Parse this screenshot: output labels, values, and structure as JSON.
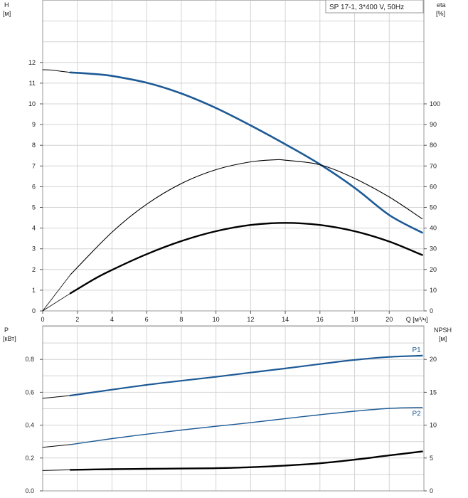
{
  "legend": "SP 17-1, 3*400 V, 50Hz",
  "colors": {
    "blue": "#1d5a96",
    "black": "#000000",
    "grid": "#d4d4d4",
    "frame": "#9a9a9a"
  },
  "chart_data": [
    {
      "type": "line",
      "name": "performance",
      "left_axis": {
        "label_line1": "H",
        "label_line2": "[м]",
        "range": [
          0,
          12
        ],
        "ticks": [
          0,
          1,
          2,
          3,
          4,
          5,
          6,
          7,
          8,
          9,
          10,
          11,
          12
        ]
      },
      "right_axis": {
        "label_line1": "eta",
        "label_line2": "[%]",
        "range": [
          0,
          120
        ],
        "ticks": [
          0,
          10,
          20,
          30,
          40,
          50,
          60,
          70,
          80,
          90,
          100
        ]
      },
      "x_axis": {
        "label": "Q [м³/ч]",
        "range": [
          0,
          22
        ],
        "tick_labels": [
          0,
          2,
          4,
          6,
          8,
          10,
          12,
          14,
          16,
          18,
          20
        ]
      },
      "grid": true,
      "series": [
        {
          "axis": "left",
          "color": "blue",
          "width": 2.6,
          "x": [
            1.6,
            3,
            4,
            6,
            8,
            10,
            12,
            14,
            16,
            18,
            20,
            21.9
          ],
          "y": [
            11.52,
            11.44,
            11.35,
            11.02,
            10.5,
            9.8,
            8.96,
            8.05,
            7.08,
            5.95,
            4.63,
            3.78
          ]
        },
        {
          "axis": "left",
          "color": "black",
          "width": 1,
          "thin": true,
          "x": [
            0,
            0.4,
            0.8,
            1.2,
            1.6
          ],
          "y": [
            11.65,
            11.64,
            11.6,
            11.56,
            11.52
          ]
        },
        {
          "axis": "right",
          "color": "black",
          "width": 1.1,
          "x": [
            1.6,
            4,
            6,
            8,
            10,
            12,
            13.4,
            14,
            16,
            18,
            20,
            21.9
          ],
          "y": [
            17.5,
            38,
            51.5,
            61.5,
            68.2,
            72,
            73,
            72.8,
            70.6,
            64,
            55,
            44.5
          ]
        },
        {
          "axis": "right",
          "color": "black",
          "width": 0.8,
          "thin": true,
          "x": [
            0,
            1.6
          ],
          "y": [
            0,
            17.5
          ]
        },
        {
          "axis": "right",
          "color": "black",
          "width": 2.4,
          "x": [
            1.6,
            3,
            4,
            6,
            8,
            10,
            12,
            14,
            16,
            18,
            20,
            21.9
          ],
          "y": [
            8.5,
            15.5,
            19.8,
            27.4,
            33.7,
            38.5,
            41.5,
            42.5,
            41.5,
            38.5,
            33.5,
            27
          ]
        },
        {
          "axis": "right",
          "color": "black",
          "width": 0.8,
          "thin": true,
          "x": [
            0,
            1.6
          ],
          "y": [
            0,
            8.5
          ]
        }
      ]
    },
    {
      "type": "line",
      "name": "power-npsh",
      "left_axis": {
        "label_line1": "P",
        "label_line2": "[кВт]",
        "range": [
          0,
          1.0
        ],
        "ticks": [
          0.0,
          0.2,
          0.4,
          0.6,
          0.8
        ]
      },
      "right_axis": {
        "label_line1": "NPSH",
        "label_line2": "[м]",
        "range": [
          0,
          25
        ],
        "ticks": [
          0,
          5,
          10,
          15,
          20
        ]
      },
      "x_axis": {
        "range": [
          0,
          22
        ]
      },
      "grid": true,
      "series": [
        {
          "axis": "left",
          "color": "blue",
          "width": 2.2,
          "label": "P1",
          "x": [
            1.6,
            4,
            6,
            8,
            10,
            12,
            14,
            16,
            18,
            20,
            21.9
          ],
          "y": [
            0.58,
            0.616,
            0.645,
            0.67,
            0.694,
            0.72,
            0.745,
            0.772,
            0.797,
            0.815,
            0.823
          ]
        },
        {
          "axis": "left",
          "color": "black",
          "width": 1,
          "thin": true,
          "x": [
            0,
            1.6
          ],
          "y": [
            0.563,
            0.58
          ]
        },
        {
          "axis": "left",
          "color": "blue",
          "width": 1.4,
          "label": "P2",
          "x": [
            1.6,
            4,
            6,
            8,
            10,
            12,
            14,
            16,
            18,
            20,
            21.9
          ],
          "y": [
            0.282,
            0.318,
            0.345,
            0.37,
            0.393,
            0.415,
            0.44,
            0.463,
            0.485,
            0.502,
            0.508
          ]
        },
        {
          "axis": "left",
          "color": "black",
          "width": 1,
          "thin": true,
          "x": [
            0,
            1.6
          ],
          "y": [
            0.265,
            0.282
          ]
        },
        {
          "axis": "right",
          "color": "black",
          "width": 2.4,
          "x": [
            1.6,
            4,
            6,
            8,
            10,
            12,
            14,
            16,
            18,
            20,
            21.9
          ],
          "y": [
            3.2,
            3.3,
            3.35,
            3.4,
            3.45,
            3.6,
            3.85,
            4.2,
            4.75,
            5.4,
            6.0
          ]
        },
        {
          "axis": "right",
          "color": "black",
          "width": 1,
          "thin": true,
          "x": [
            0,
            1.6
          ],
          "y": [
            3.1,
            3.2
          ]
        }
      ]
    }
  ]
}
